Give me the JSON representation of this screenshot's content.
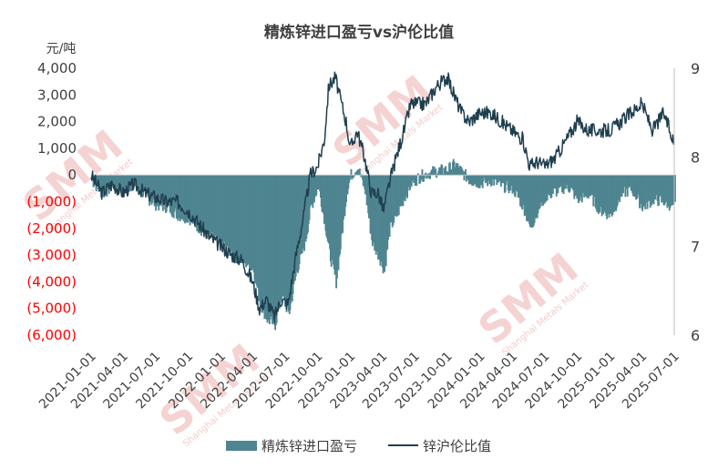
{
  "chart_data": {
    "type": "bar+line",
    "title": "精炼锌进口盈亏vs沪伦比值",
    "left_axis": {
      "unit_label": "元/吨",
      "range": [
        -6000,
        4000
      ],
      "ticks": [
        {
          "value": 4000,
          "label": "4,000",
          "color": "#404040"
        },
        {
          "value": 3000,
          "label": "3,000",
          "color": "#404040"
        },
        {
          "value": 2000,
          "label": "2,000",
          "color": "#404040"
        },
        {
          "value": 1000,
          "label": "1,000",
          "color": "#404040"
        },
        {
          "value": 0,
          "label": "0",
          "color": "#404040"
        },
        {
          "value": -1000,
          "label": "(1,000)",
          "color": "#ff0000"
        },
        {
          "value": -2000,
          "label": "(2,000)",
          "color": "#ff0000"
        },
        {
          "value": -3000,
          "label": "(3,000)",
          "color": "#ff0000"
        },
        {
          "value": -4000,
          "label": "(4,000)",
          "color": "#ff0000"
        },
        {
          "value": -5000,
          "label": "(5,000)",
          "color": "#ff0000"
        },
        {
          "value": -6000,
          "label": "(6,000)",
          "color": "#ff0000"
        }
      ]
    },
    "right_axis": {
      "range": [
        6,
        9
      ],
      "ticks": [
        {
          "value": 9,
          "label": "9"
        },
        {
          "value": 8,
          "label": "8"
        },
        {
          "value": 7,
          "label": "7"
        },
        {
          "value": 6,
          "label": "6"
        }
      ]
    },
    "x_axis": {
      "range": [
        "2021-01-01",
        "2025-07-01"
      ],
      "tick_labels": [
        "2021-01-01",
        "2021-04-01",
        "2021-07-01",
        "2021-10-01",
        "2022-01-01",
        "2022-04-01",
        "2022-07-01",
        "2022-10-01",
        "2023-01-01",
        "2023-04-01",
        "2023-07-01",
        "2023-10-01",
        "2024-01-01",
        "2024-04-01",
        "2024-07-01",
        "2024-10-01",
        "2025-01-01",
        "2025-04-01",
        "2025-07-01"
      ]
    },
    "series": [
      {
        "name": "精炼锌进口盈亏",
        "type": "area",
        "axis": "left",
        "color": "#4e8590",
        "x": [
          "2021-01-01",
          "2021-02-01",
          "2021-03-01",
          "2021-04-01",
          "2021-05-01",
          "2021-06-01",
          "2021-07-01",
          "2021-08-01",
          "2021-09-01",
          "2021-10-01",
          "2021-11-01",
          "2021-12-01",
          "2022-01-01",
          "2022-02-01",
          "2022-03-01",
          "2022-04-01",
          "2022-04-20",
          "2022-05-10",
          "2022-06-01",
          "2022-06-20",
          "2022-07-10",
          "2022-08-01",
          "2022-08-25",
          "2022-09-10",
          "2022-10-01",
          "2022-10-20",
          "2022-11-01",
          "2022-11-20",
          "2022-12-01",
          "2022-12-20",
          "2023-01-01",
          "2023-01-20",
          "2023-02-10",
          "2023-03-01",
          "2023-03-20",
          "2023-04-05",
          "2023-04-20",
          "2023-05-10",
          "2023-06-01",
          "2023-06-20",
          "2023-07-10",
          "2023-08-01",
          "2023-09-01",
          "2023-10-01",
          "2023-10-20",
          "2023-11-10",
          "2023-12-01",
          "2024-01-01",
          "2024-02-01",
          "2024-03-01",
          "2024-04-01",
          "2024-05-01",
          "2024-05-20",
          "2024-06-10",
          "2024-07-01",
          "2024-08-01",
          "2024-09-01",
          "2024-10-01",
          "2024-11-01",
          "2024-12-01",
          "2025-01-01",
          "2025-02-01",
          "2025-03-01",
          "2025-04-01",
          "2025-05-01",
          "2025-06-01",
          "2025-07-01"
        ],
        "values": [
          -200,
          -700,
          -400,
          -600,
          -300,
          -800,
          -1100,
          -1200,
          -1500,
          -1600,
          -2000,
          -2300,
          -2500,
          -3000,
          -3200,
          -3500,
          -4800,
          -5400,
          -5600,
          -4500,
          -5200,
          -3600,
          -2500,
          -1200,
          -400,
          -1800,
          -2900,
          -4000,
          -2800,
          -600,
          0,
          300,
          -600,
          -2500,
          -3000,
          -3600,
          -2000,
          -1500,
          -800,
          -300,
          -100,
          50,
          150,
          200,
          400,
          100,
          -200,
          -300,
          -200,
          -400,
          -500,
          -1200,
          -2000,
          -1300,
          -800,
          -600,
          -400,
          -900,
          -700,
          -1300,
          -1500,
          -700,
          -500,
          -1200,
          -900,
          -1000,
          -1200
        ]
      },
      {
        "name": "锌沪伦比值",
        "type": "line",
        "axis": "right",
        "color": "#1f3f4f",
        "x": [
          "2021-01-01",
          "2021-02-01",
          "2021-03-01",
          "2021-04-01",
          "2021-05-01",
          "2021-06-01",
          "2021-07-01",
          "2021-08-01",
          "2021-09-01",
          "2021-10-01",
          "2021-11-01",
          "2021-12-01",
          "2022-01-01",
          "2022-02-01",
          "2022-03-01",
          "2022-04-01",
          "2022-04-20",
          "2022-05-10",
          "2022-06-01",
          "2022-06-20",
          "2022-07-10",
          "2022-08-01",
          "2022-08-25",
          "2022-09-10",
          "2022-10-01",
          "2022-10-20",
          "2022-11-01",
          "2022-11-20",
          "2022-12-01",
          "2022-12-20",
          "2023-01-01",
          "2023-01-20",
          "2023-02-10",
          "2023-03-01",
          "2023-03-20",
          "2023-04-05",
          "2023-04-20",
          "2023-05-10",
          "2023-06-01",
          "2023-06-20",
          "2023-07-10",
          "2023-08-01",
          "2023-09-01",
          "2023-10-01",
          "2023-10-20",
          "2023-11-10",
          "2023-12-01",
          "2024-01-01",
          "2024-02-01",
          "2024-03-01",
          "2024-04-01",
          "2024-05-01",
          "2024-05-20",
          "2024-06-10",
          "2024-07-01",
          "2024-08-01",
          "2024-09-01",
          "2024-10-01",
          "2024-11-01",
          "2024-12-01",
          "2025-01-01",
          "2025-02-01",
          "2025-03-01",
          "2025-04-01",
          "2025-05-01",
          "2025-06-01",
          "2025-07-01"
        ],
        "values": [
          7.8,
          7.6,
          7.7,
          7.6,
          7.7,
          7.6,
          7.55,
          7.5,
          7.5,
          7.4,
          7.25,
          7.1,
          7.0,
          6.9,
          6.85,
          6.6,
          6.3,
          6.4,
          6.2,
          6.4,
          6.35,
          6.9,
          7.4,
          7.8,
          7.9,
          8.2,
          8.8,
          8.9,
          8.7,
          8.4,
          8.1,
          8.3,
          8.0,
          7.6,
          7.6,
          7.4,
          7.7,
          8.0,
          8.3,
          8.6,
          8.6,
          8.6,
          8.8,
          8.9,
          8.7,
          8.5,
          8.4,
          8.5,
          8.5,
          8.4,
          8.3,
          8.2,
          7.9,
          7.95,
          7.9,
          8.0,
          8.2,
          8.4,
          8.3,
          8.3,
          8.3,
          8.4,
          8.5,
          8.6,
          8.3,
          8.5,
          8.15
        ]
      }
    ],
    "legend": {
      "position": "bottom"
    },
    "grid": false
  },
  "watermark": {
    "text": "SMM",
    "subtext": "Shanghai Metals Market"
  }
}
